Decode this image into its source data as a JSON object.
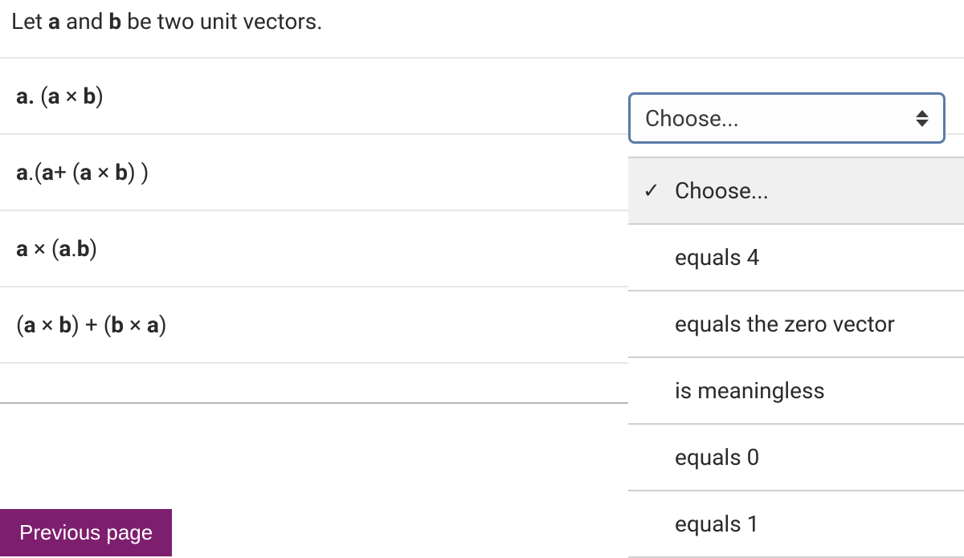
{
  "header": {
    "prefix": "Let ",
    "a": "a",
    "mid1": " and ",
    "b": "b",
    "suffix": " be two unit vectors."
  },
  "questions": [
    {
      "parts": [
        {
          "text": "a.",
          "bold": true
        },
        {
          "text": " (",
          "bold": false
        },
        {
          "text": "a",
          "bold": true
        },
        {
          "text": " × ",
          "bold": false
        },
        {
          "text": "b",
          "bold": true
        },
        {
          "text": ")",
          "bold": false
        }
      ]
    },
    {
      "parts": [
        {
          "text": "a",
          "bold": true
        },
        {
          "text": ".(",
          "bold": false
        },
        {
          "text": "a",
          "bold": true
        },
        {
          "text": "+ (",
          "bold": false
        },
        {
          "text": "a",
          "bold": true
        },
        {
          "text": " × ",
          "bold": false
        },
        {
          "text": "b",
          "bold": true
        },
        {
          "text": ") )",
          "bold": false
        }
      ]
    },
    {
      "parts": [
        {
          "text": "a",
          "bold": true
        },
        {
          "text": " × (",
          "bold": false
        },
        {
          "text": "a",
          "bold": true
        },
        {
          "text": ".",
          "bold": false
        },
        {
          "text": "b",
          "bold": true
        },
        {
          "text": ")",
          "bold": false
        }
      ]
    },
    {
      "parts": [
        {
          "text": "(",
          "bold": false
        },
        {
          "text": "a",
          "bold": true
        },
        {
          "text": " × ",
          "bold": false
        },
        {
          "text": "b",
          "bold": true
        },
        {
          "text": ") + (",
          "bold": false
        },
        {
          "text": "b",
          "bold": true
        },
        {
          "text": " × ",
          "bold": false
        },
        {
          "text": "a",
          "bold": true
        },
        {
          "text": ")",
          "bold": false
        }
      ]
    }
  ],
  "select": {
    "placeholder": "Choose..."
  },
  "dropdown": {
    "options": [
      {
        "label": "Choose...",
        "selected": true
      },
      {
        "label": "equals 4",
        "selected": false
      },
      {
        "label": "equals the zero vector",
        "selected": false
      },
      {
        "label": "is meaningless",
        "selected": false
      },
      {
        "label": "equals 0",
        "selected": false
      },
      {
        "label": "equals 1",
        "selected": false
      }
    ]
  },
  "nav": {
    "previous": "Previous page"
  },
  "colors": {
    "button_bg": "#7e1e6e",
    "select_border": "#5a7ba8",
    "row_border": "#e5e5e5",
    "divider": "#b5b5b5"
  }
}
